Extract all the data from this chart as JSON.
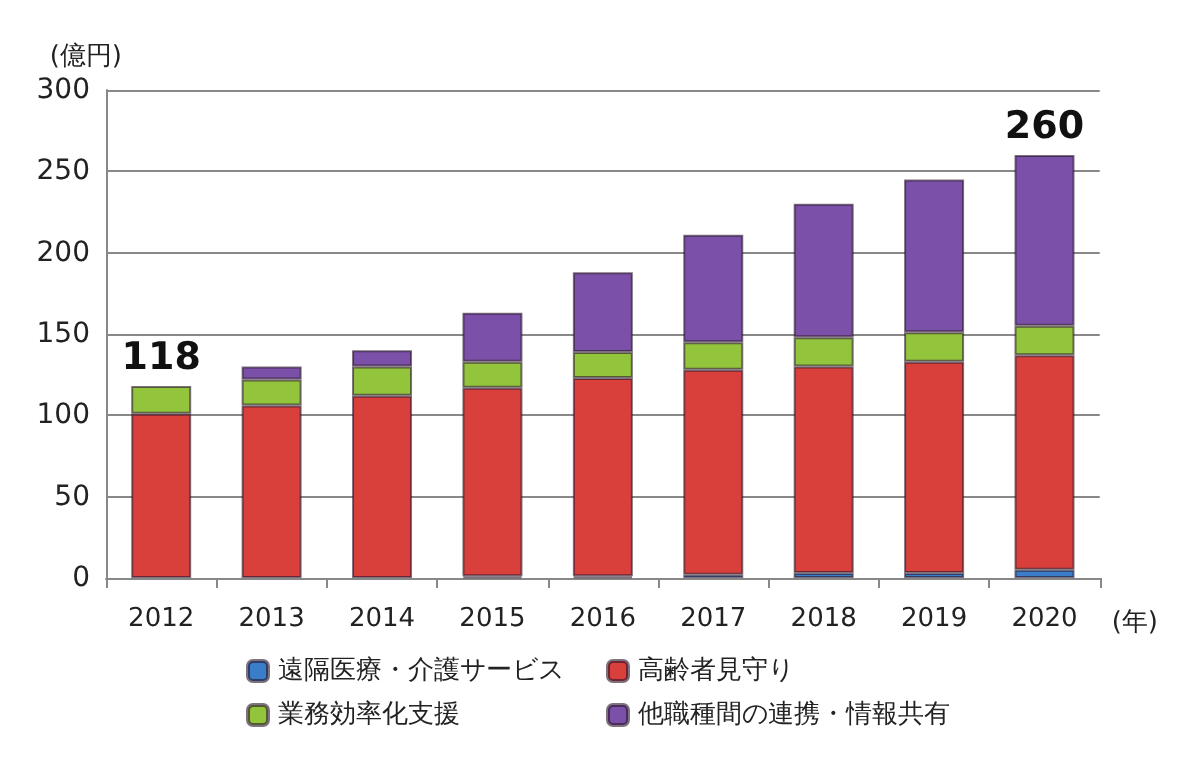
{
  "chart_data": {
    "type": "bar",
    "stacked": true,
    "ylabel": "(億円)",
    "xlabel": "(年)",
    "categories": [
      "2012",
      "2013",
      "2014",
      "2015",
      "2016",
      "2017",
      "2018",
      "2019",
      "2020"
    ],
    "series": [
      {
        "name": "遠隔医療・介護サービス",
        "color": "#3a7dc9",
        "values": [
          0,
          0,
          0,
          1,
          1,
          2,
          3,
          3,
          5
        ]
      },
      {
        "name": "高齢者見守り",
        "color": "#d9403c",
        "values": [
          101,
          106,
          112,
          116,
          122,
          126,
          127,
          130,
          132
        ]
      },
      {
        "name": "業務効率化支援",
        "color": "#92c43c",
        "values": [
          17,
          16,
          18,
          16,
          16,
          17,
          18,
          18,
          18
        ]
      },
      {
        "name": "他職種間の連携・情報共有",
        "color": "#7b50a8",
        "values": [
          0,
          8,
          10,
          30,
          49,
          66,
          82,
          94,
          105
        ]
      }
    ],
    "totals": [
      "118",
      null,
      null,
      null,
      null,
      null,
      null,
      null,
      "260"
    ],
    "ylim": [
      0,
      300
    ],
    "yticks": [
      0,
      50,
      100,
      150,
      200,
      250,
      300
    ],
    "grid": "y",
    "legend": "bottom"
  }
}
